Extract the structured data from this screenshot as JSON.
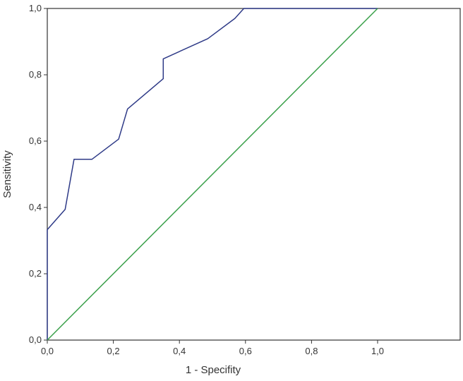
{
  "chart_data": {
    "type": "line",
    "title": "",
    "xlabel": "1 - Specifity",
    "ylabel": "Sensitivity",
    "xlim": [
      0,
      1.25
    ],
    "ylim": [
      0,
      1
    ],
    "xticks": [
      0,
      0.2,
      0.4,
      0.6,
      0.8,
      1.0
    ],
    "xtick_labels": [
      "0,0",
      "0,2",
      "0,4",
      "0,6",
      "0,8",
      "1,0"
    ],
    "yticks": [
      0,
      0.2,
      0.4,
      0.6,
      0.8,
      1.0
    ],
    "ytick_labels": [
      "0,0",
      "0,2",
      "0,4",
      "0,6",
      "0,8",
      "1,0"
    ],
    "grid": false,
    "series": [
      {
        "color": "#2e3a87",
        "x": [
          0,
          0,
          0.054,
          0.081,
          0.135,
          0.216,
          0.243,
          0.351,
          0.351,
          0.486,
          0.568,
          0.595,
          1.0
        ],
        "y": [
          0,
          0.333,
          0.394,
          0.545,
          0.545,
          0.606,
          0.697,
          0.788,
          0.848,
          0.909,
          0.97,
          1.0,
          1.0
        ]
      },
      {
        "color": "#3aa04a",
        "x": [
          0,
          1
        ],
        "y": [
          0,
          1
        ]
      }
    ]
  }
}
